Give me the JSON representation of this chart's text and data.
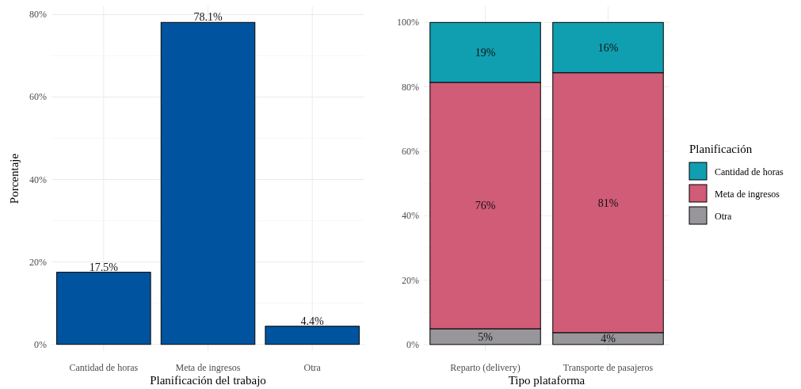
{
  "chart_data": [
    {
      "type": "bar",
      "xlabel": "Planificación del trabajo",
      "ylabel": "Porcentaje",
      "categories": [
        "Cantidad de horas",
        "Meta de ingresos",
        "Otra"
      ],
      "values": [
        17.5,
        78.1,
        4.4
      ],
      "color": "#00549f",
      "value_labels": [
        "17.5%",
        "78.1%",
        "4.4%"
      ],
      "ylim": [
        -1.6,
        82
      ],
      "yticks": [
        {
          "value": 0,
          "label": "0%"
        },
        {
          "value": 20,
          "label": "20%"
        },
        {
          "value": 40,
          "label": "40%"
        },
        {
          "value": 60,
          "label": "60%"
        },
        {
          "value": 80,
          "label": "80%"
        }
      ],
      "grid": true
    },
    {
      "type": "bar",
      "stacked": true,
      "xlabel": "Tipo plataforma",
      "legend_title": "Planificación",
      "legend": "right",
      "categories": [
        "Reparto (delivery)",
        "Transporte de pasajeros"
      ],
      "series": [
        {
          "name": "Otra",
          "color": "#98969a",
          "values": [
            4.9,
            3.7
          ],
          "value_labels": [
            "5%",
            "4%"
          ]
        },
        {
          "name": "Meta de ingresos",
          "color": "#d05c78",
          "values": [
            76.5,
            80.7
          ],
          "value_labels": [
            "76%",
            "81%"
          ]
        },
        {
          "name": "Cantidad de horas",
          "color": "#109fb1",
          "values": [
            18.6,
            15.6
          ],
          "value_labels": [
            "19%",
            "16%"
          ]
        }
      ],
      "ylim": [
        -2,
        105
      ],
      "yticks": [
        {
          "value": 0,
          "label": "0%"
        },
        {
          "value": 20,
          "label": "20%"
        },
        {
          "value": 40,
          "label": "40%"
        },
        {
          "value": 60,
          "label": "60%"
        },
        {
          "value": 80,
          "label": "80%"
        },
        {
          "value": 100,
          "label": "100%"
        }
      ],
      "grid": true
    }
  ]
}
